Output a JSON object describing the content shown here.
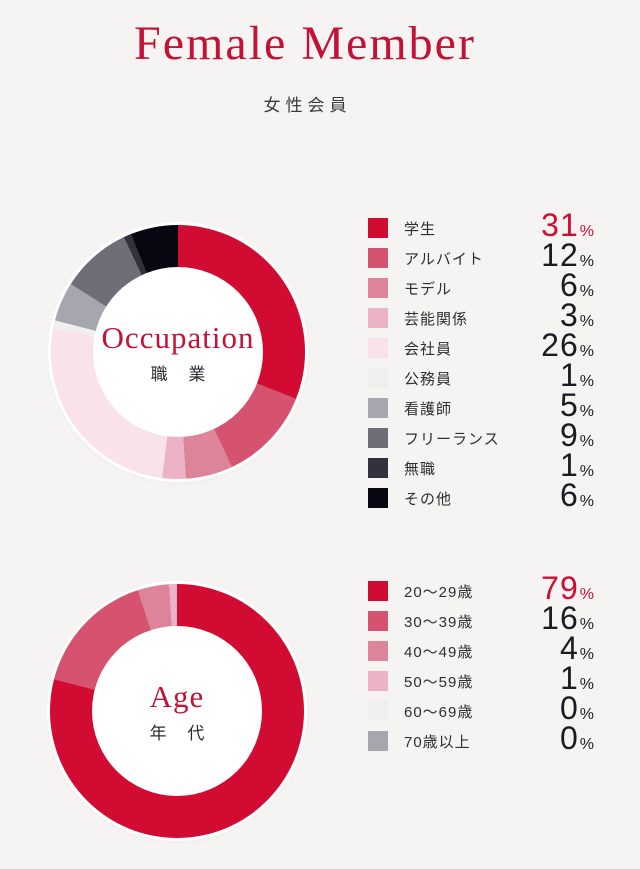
{
  "page": {
    "background": "#f5f4f2",
    "accent": "#c21236",
    "hole_color": "#ffffff"
  },
  "header": {
    "title": "Female Member",
    "subtitle": "女性会員"
  },
  "chart_data": [
    {
      "id": "occupation",
      "type": "donut",
      "title_en": "Occupation",
      "title_ja": "職 業",
      "unit": "%",
      "legend_position": "right",
      "start_angle_deg": 0,
      "items": [
        {
          "label": "学生",
          "value": 31,
          "color": "#d20b32",
          "highlight": true
        },
        {
          "label": "アルバイト",
          "value": 12,
          "color": "#d65370"
        },
        {
          "label": "モデル",
          "value": 6,
          "color": "#dd839a"
        },
        {
          "label": "芸能関係",
          "value": 3,
          "color": "#ecb3c6"
        },
        {
          "label": "会社員",
          "value": 26,
          "color": "#f9e2ea"
        },
        {
          "label": "公務員",
          "value": 1,
          "color": "#efefed"
        },
        {
          "label": "看護師",
          "value": 5,
          "color": "#a5a6ae"
        },
        {
          "label": "フリーランス",
          "value": 9,
          "color": "#6e6e78"
        },
        {
          "label": "無職",
          "value": 1,
          "color": "#32323e"
        },
        {
          "label": "その他",
          "value": 6,
          "color": "#070611"
        }
      ]
    },
    {
      "id": "age",
      "type": "donut",
      "title_en": "Age",
      "title_ja": "年 代",
      "unit": "%",
      "legend_position": "right",
      "start_angle_deg": 0,
      "items": [
        {
          "label": "20〜29歳",
          "value": 79,
          "color": "#d20b32",
          "highlight": true
        },
        {
          "label": "30〜39歳",
          "value": 16,
          "color": "#d65370"
        },
        {
          "label": "40〜49歳",
          "value": 4,
          "color": "#dd839a"
        },
        {
          "label": "50〜59歳",
          "value": 1,
          "color": "#ecb3c6"
        },
        {
          "label": "60〜69歳",
          "value": 0,
          "color": "#efefed"
        },
        {
          "label": "70歳以上",
          "value": 0,
          "color": "#a5a6ae"
        }
      ]
    }
  ]
}
